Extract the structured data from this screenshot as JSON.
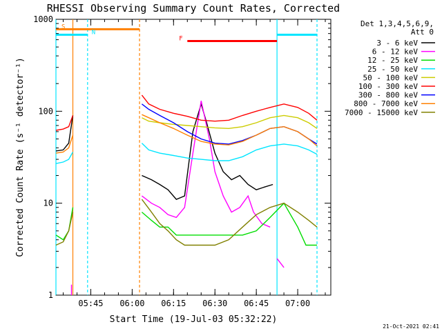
{
  "timestamp": "21-Oct-2021 02:41",
  "chart_data": {
    "type": "line",
    "title": "RHESSI Observing Summary Count Rates, Corrected",
    "xlabel": "Start Time (19-Jul-03 05:32:22)",
    "ylabel": "Corrected Count Rate (s⁻¹ detector⁻¹)",
    "y_scale": "log",
    "ylim": [
      1,
      1000
    ],
    "xlim": [
      "05:32:22",
      "07:12:00"
    ],
    "grid": false,
    "legend_placement": "right",
    "x_ticks": [
      "05:45",
      "06:00",
      "06:15",
      "06:30",
      "06:45",
      "07:00"
    ],
    "y_ticks": [
      {
        "value": 1,
        "label": "1"
      },
      {
        "value": 10,
        "label": "10"
      },
      {
        "value": 100,
        "label": "100"
      },
      {
        "value": 1000,
        "label": "1000"
      }
    ],
    "legend_header": [
      "Det 1,3,4,5,6,9,",
      "Att 0"
    ],
    "flag_bars": [
      {
        "label": "S",
        "start": "05:32:22",
        "end": "06:02:40",
        "value": 780,
        "color": "#ff8000"
      },
      {
        "label": "N",
        "start": "05:32:22",
        "end": "05:43:50",
        "value": 680,
        "color": "#00e5ff"
      },
      {
        "label": "",
        "start": "06:52:30",
        "end": "07:07:00",
        "value": 680,
        "color": "#00e5ff"
      },
      {
        "label": "F",
        "start": "06:20:00",
        "end": "06:52:30",
        "value": 580,
        "color": "#ff0000"
      }
    ],
    "vertical_markers": [
      {
        "time": "05:32:22",
        "color": "#00e5ff",
        "style": "solid"
      },
      {
        "time": "05:38:30",
        "color": "#ff8000",
        "style": "solid"
      },
      {
        "time": "05:43:50",
        "color": "#00e5ff",
        "style": "dashed"
      },
      {
        "time": "06:02:40",
        "color": "#ff8000",
        "style": "dashed"
      },
      {
        "time": "06:52:30",
        "color": "#00e5ff",
        "style": "solid"
      },
      {
        "time": "07:07:00",
        "color": "#00e5ff",
        "style": "dashed"
      }
    ],
    "series": [
      {
        "name": "3 - 6 keV",
        "color": "#000000",
        "segments": [
          [
            [
              "05:32:22",
              37
            ],
            [
              "05:35:00",
              38
            ],
            [
              "05:37:00",
              45
            ],
            [
              "05:38:30",
              90
            ]
          ],
          [
            [
              "06:03:30",
              20
            ],
            [
              "06:07:00",
              18
            ],
            [
              "06:10:00",
              16
            ],
            [
              "06:13:00",
              14
            ],
            [
              "06:16:00",
              11
            ],
            [
              "06:19:00",
              12
            ],
            [
              "06:22:00",
              60
            ],
            [
              "06:25:00",
              120
            ],
            [
              "06:27:00",
              75
            ],
            [
              "06:30:00",
              35
            ],
            [
              "06:33:00",
              22
            ],
            [
              "06:36:00",
              18
            ],
            [
              "06:39:00",
              20
            ],
            [
              "06:42:00",
              16
            ],
            [
              "06:45:00",
              14
            ],
            [
              "06:48:00",
              15
            ],
            [
              "06:51:00",
              16
            ]
          ]
        ]
      },
      {
        "name": "6 - 12 keV",
        "color": "#ff00ff",
        "segments": [
          [
            [
              "05:38:00",
              1.0
            ],
            [
              "05:38:00",
              1.3
            ]
          ],
          [
            [
              "06:03:30",
              12
            ],
            [
              "06:07:00",
              10
            ],
            [
              "06:10:00",
              9
            ],
            [
              "06:13:00",
              7.5
            ],
            [
              "06:16:00",
              7
            ],
            [
              "06:19:00",
              9
            ],
            [
              "06:22:00",
              35
            ],
            [
              "06:25:00",
              130
            ],
            [
              "06:28:00",
              50
            ],
            [
              "06:30:00",
              22
            ],
            [
              "06:33:00",
              12
            ],
            [
              "06:36:00",
              8
            ],
            [
              "06:39:00",
              9
            ],
            [
              "06:42:00",
              12
            ],
            [
              "06:44:00",
              8
            ],
            [
              "06:47:00",
              6
            ],
            [
              "06:50:00",
              5.5
            ]
          ],
          [
            [
              "06:52:30",
              2.5
            ],
            [
              "06:55:00",
              2.0
            ]
          ]
        ]
      },
      {
        "name": "12 - 25 keV",
        "color": "#00dd00",
        "segments": [
          [
            [
              "05:32:22",
              4.5
            ],
            [
              "05:35:00",
              4.0
            ],
            [
              "05:37:00",
              5
            ],
            [
              "05:38:30",
              9
            ]
          ],
          [
            [
              "06:03:30",
              8
            ],
            [
              "06:07:00",
              6.5
            ],
            [
              "06:10:00",
              5.5
            ],
            [
              "06:13:00",
              5.5
            ],
            [
              "06:16:00",
              4.5
            ],
            [
              "06:19:00",
              4.5
            ],
            [
              "06:22:00",
              4.5
            ],
            [
              "06:25:00",
              4.5
            ],
            [
              "06:30:00",
              4.5
            ],
            [
              "06:35:00",
              4.5
            ],
            [
              "06:40:00",
              4.5
            ],
            [
              "06:45:00",
              5
            ],
            [
              "06:50:00",
              7
            ],
            [
              "06:55:00",
              10
            ],
            [
              "07:00:00",
              5.5
            ],
            [
              "07:03:00",
              3.5
            ],
            [
              "07:07:00",
              3.5
            ]
          ]
        ]
      },
      {
        "name": "25 - 50 keV",
        "color": "#00e5ff",
        "segments": [
          [
            [
              "05:32:22",
              27
            ],
            [
              "05:35:00",
              28
            ],
            [
              "05:37:00",
              30
            ],
            [
              "05:38:30",
              36
            ]
          ],
          [
            [
              "06:03:30",
              45
            ],
            [
              "06:06:00",
              38
            ],
            [
              "06:10:00",
              35
            ],
            [
              "06:15:00",
              33
            ],
            [
              "06:20:00",
              31
            ],
            [
              "06:25:00",
              30
            ],
            [
              "06:30:00",
              29
            ],
            [
              "06:35:00",
              29
            ],
            [
              "06:40:00",
              32
            ],
            [
              "06:45:00",
              38
            ],
            [
              "06:50:00",
              42
            ],
            [
              "06:55:00",
              44
            ],
            [
              "07:00:00",
              42
            ],
            [
              "07:04:00",
              38
            ],
            [
              "07:07:00",
              34
            ]
          ]
        ]
      },
      {
        "name": "50 - 100 keV",
        "color": "#cccc00",
        "segments": [
          [
            [
              "06:03:30",
              85
            ],
            [
              "06:06:00",
              78
            ],
            [
              "06:10:00",
              75
            ],
            [
              "06:15:00",
              72
            ],
            [
              "06:20:00",
              70
            ],
            [
              "06:25:00",
              68
            ],
            [
              "06:30:00",
              66
            ],
            [
              "06:35:00",
              65
            ],
            [
              "06:40:00",
              68
            ],
            [
              "06:45:00",
              75
            ],
            [
              "06:50:00",
              85
            ],
            [
              "06:55:00",
              90
            ],
            [
              "07:00:00",
              85
            ],
            [
              "07:04:00",
              75
            ],
            [
              "07:07:00",
              65
            ]
          ]
        ]
      },
      {
        "name": "100 - 300 keV",
        "color": "#ff0000",
        "segments": [
          [
            [
              "05:32:22",
              62
            ],
            [
              "05:35:00",
              64
            ],
            [
              "05:37:00",
              68
            ],
            [
              "05:38:30",
              90
            ]
          ],
          [
            [
              "06:03:30",
              150
            ],
            [
              "06:06:00",
              120
            ],
            [
              "06:10:00",
              105
            ],
            [
              "06:15:00",
              95
            ],
            [
              "06:20:00",
              88
            ],
            [
              "06:25:00",
              80
            ],
            [
              "06:30:00",
              78
            ],
            [
              "06:35:00",
              80
            ],
            [
              "06:40:00",
              90
            ],
            [
              "06:45:00",
              100
            ],
            [
              "06:50:00",
              110
            ],
            [
              "06:55:00",
              120
            ],
            [
              "07:00:00",
              110
            ],
            [
              "07:04:00",
              95
            ],
            [
              "07:07:00",
              80
            ]
          ]
        ]
      },
      {
        "name": "300 - 800 keV",
        "color": "#0000ff",
        "segments": [
          [
            [
              "06:03:30",
              120
            ],
            [
              "06:06:00",
              105
            ],
            [
              "06:10:00",
              90
            ],
            [
              "06:15:00",
              75
            ],
            [
              "06:20:00",
              60
            ],
            [
              "06:25:00",
              50
            ],
            [
              "06:30:00",
              45
            ],
            [
              "06:35:00",
              44
            ],
            [
              "06:40:00",
              48
            ],
            [
              "06:45:00",
              55
            ],
            [
              "06:50:00",
              65
            ],
            [
              "06:55:00",
              68
            ],
            [
              "07:00:00",
              60
            ],
            [
              "07:04:00",
              50
            ],
            [
              "07:07:00",
              44
            ]
          ]
        ]
      },
      {
        "name": "800 - 7000 keV",
        "color": "#ff8000",
        "segments": [
          [
            [
              "05:32:22",
              35
            ],
            [
              "05:35:00",
              36
            ],
            [
              "05:37:00",
              40
            ],
            [
              "05:38:30",
              55
            ]
          ],
          [
            [
              "06:03:30",
              92
            ],
            [
              "06:06:00",
              85
            ],
            [
              "06:10:00",
              75
            ],
            [
              "06:15:00",
              65
            ],
            [
              "06:20:00",
              55
            ],
            [
              "06:25:00",
              47
            ],
            [
              "06:30:00",
              44
            ],
            [
              "06:35:00",
              43
            ],
            [
              "06:40:00",
              47
            ],
            [
              "06:45:00",
              55
            ],
            [
              "06:50:00",
              65
            ],
            [
              "06:55:00",
              68
            ],
            [
              "07:00:00",
              60
            ],
            [
              "07:04:00",
              50
            ],
            [
              "07:07:00",
              42
            ]
          ]
        ]
      },
      {
        "name": "7000 - 15000 keV",
        "color": "#808000",
        "segments": [
          [
            [
              "05:32:22",
              3.5
            ],
            [
              "05:35:00",
              3.8
            ],
            [
              "05:37:00",
              5
            ],
            [
              "05:38:30",
              8
            ]
          ],
          [
            [
              "06:03:30",
              11
            ],
            [
              "06:07:00",
              8
            ],
            [
              "06:10:00",
              6
            ],
            [
              "06:13:00",
              5
            ],
            [
              "06:16:00",
              4
            ],
            [
              "06:19:00",
              3.5
            ],
            [
              "06:22:00",
              3.5
            ],
            [
              "06:25:00",
              3.5
            ],
            [
              "06:30:00",
              3.5
            ],
            [
              "06:35:00",
              4
            ],
            [
              "06:40:00",
              5.5
            ],
            [
              "06:45:00",
              7.5
            ],
            [
              "06:50:00",
              9
            ],
            [
              "06:55:00",
              10
            ],
            [
              "07:00:00",
              8
            ],
            [
              "07:04:00",
              6.5
            ],
            [
              "07:07:00",
              5.5
            ]
          ]
        ]
      }
    ]
  }
}
